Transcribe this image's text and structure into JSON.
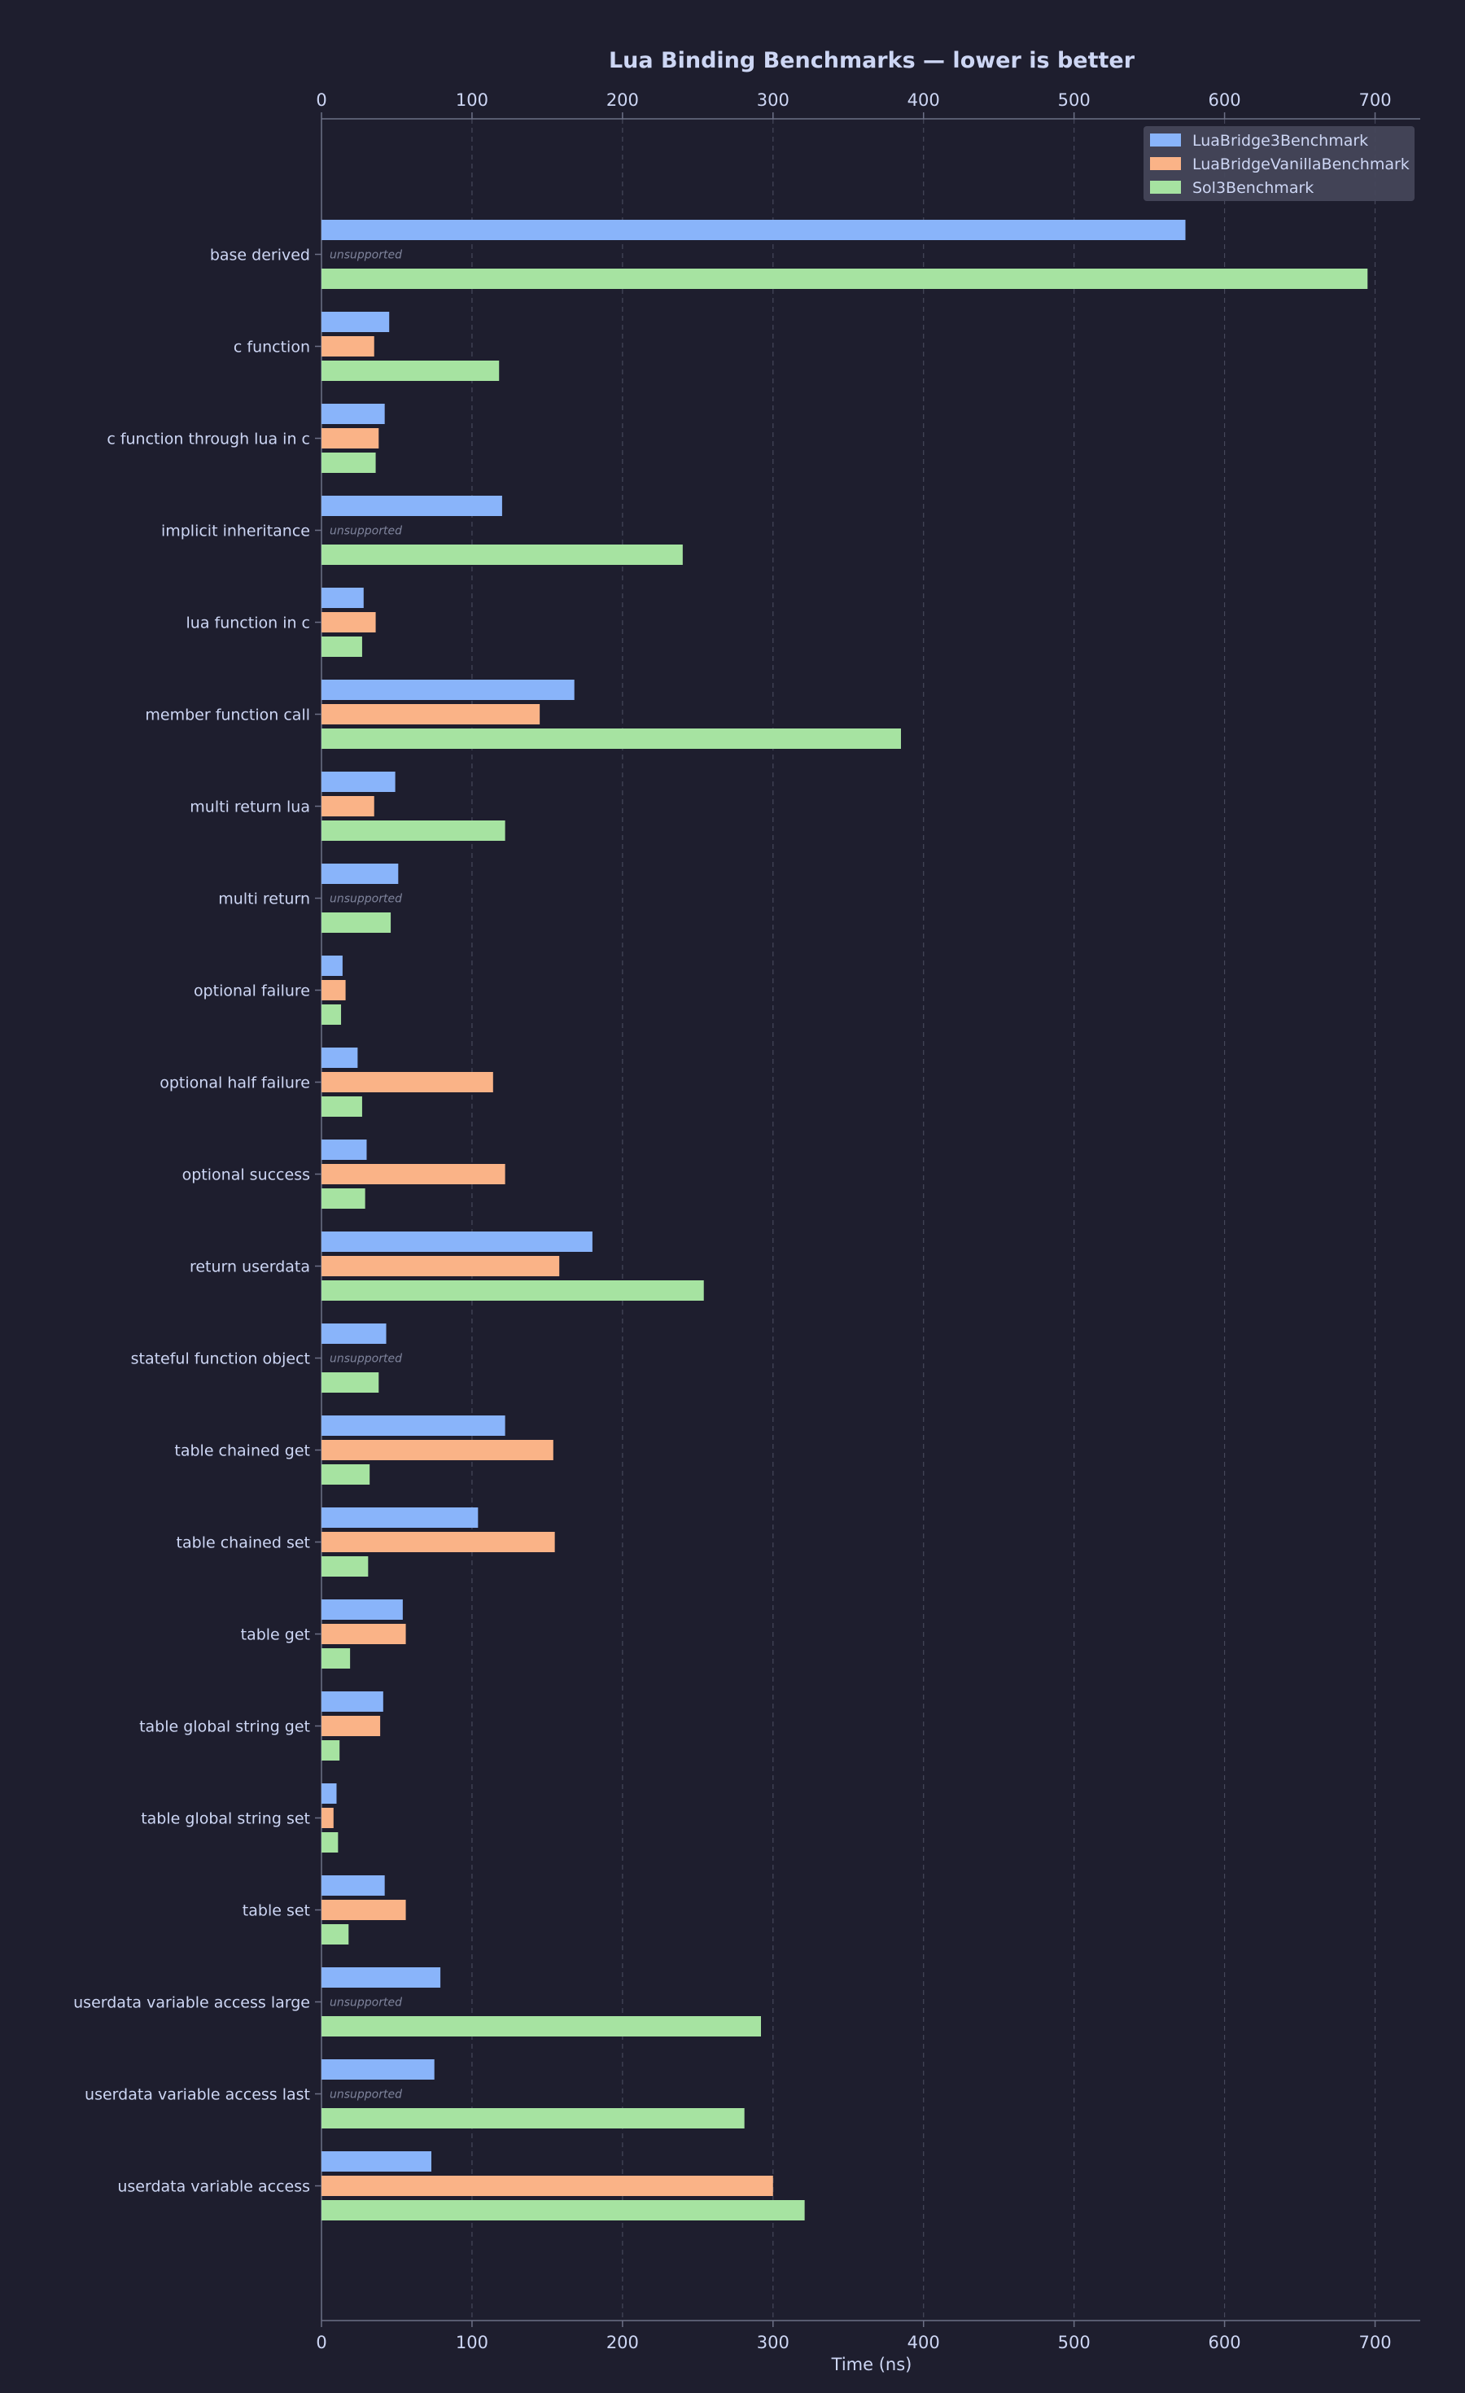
{
  "chart_data": {
    "type": "bar",
    "orientation": "horizontal",
    "title": "Lua Binding Benchmarks — lower is better",
    "xlabel": "Time (ns)",
    "ylabel": "",
    "xlim": [
      0,
      730
    ],
    "xticks": [
      0,
      100,
      200,
      300,
      400,
      500,
      600,
      700
    ],
    "grid": true,
    "legend_position": "top-right",
    "missing_label": "unsupported",
    "colors": {
      "background": "#1e1e2e",
      "text": "#cdd6f4",
      "grid": "#45475a",
      "axis": "#6c7086",
      "legend_bg": "#45475a"
    },
    "categories": [
      "base derived",
      "c function",
      "c function through lua in c",
      "implicit inheritance",
      "lua function in c",
      "member function call",
      "multi return lua",
      "multi return",
      "optional failure",
      "optional half failure",
      "optional success",
      "return userdata",
      "stateful function object",
      "table chained get",
      "table chained set",
      "table get",
      "table global string get",
      "table global string set",
      "table set",
      "userdata variable access large",
      "userdata variable access last",
      "userdata variable access"
    ],
    "series": [
      {
        "name": "LuaBridge3Benchmark",
        "color": "#89b4fa",
        "values": [
          574,
          45,
          42,
          120,
          28,
          168,
          49,
          51,
          14,
          24,
          30,
          180,
          43,
          122,
          104,
          54,
          41,
          10,
          42,
          79,
          75,
          73
        ]
      },
      {
        "name": "LuaBridgeVanillaBenchmark",
        "color": "#fab387",
        "values": [
          null,
          35,
          38,
          null,
          36,
          145,
          35,
          null,
          16,
          114,
          122,
          158,
          null,
          154,
          155,
          56,
          39,
          8,
          56,
          null,
          null,
          300
        ]
      },
      {
        "name": "Sol3Benchmark",
        "color": "#a6e3a1",
        "values": [
          695,
          118,
          36,
          240,
          27,
          385,
          122,
          46,
          13,
          27,
          29,
          254,
          38,
          32,
          31,
          19,
          12,
          11,
          18,
          292,
          281,
          321
        ]
      }
    ]
  }
}
